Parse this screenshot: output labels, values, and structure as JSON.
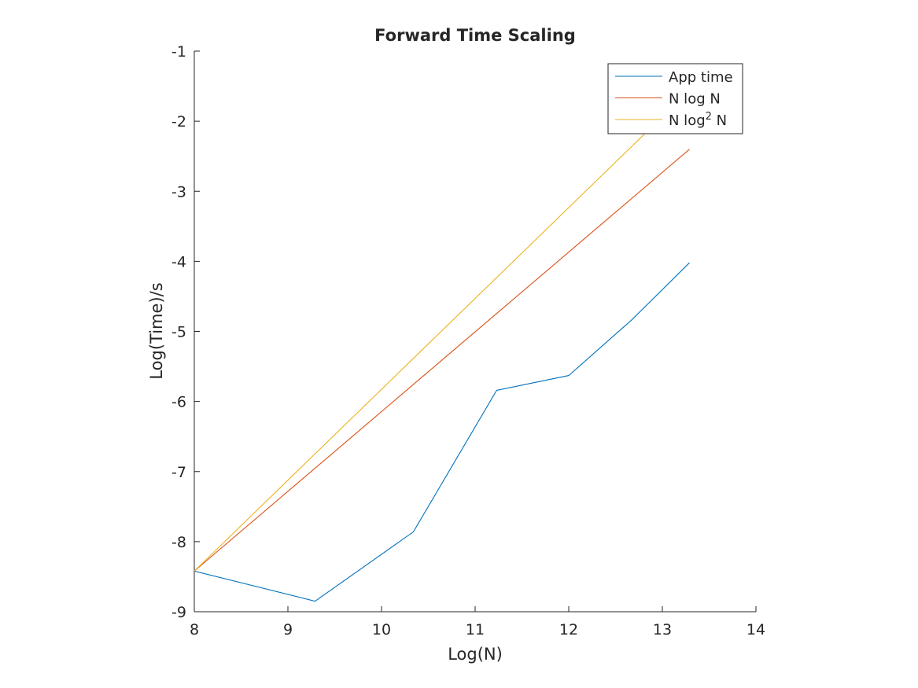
{
  "chart_data": {
    "type": "line",
    "title": "Forward Time Scaling",
    "xlabel": "Log(N)",
    "ylabel": "Log(Time)/s",
    "xlim": [
      8,
      14
    ],
    "ylim": [
      -9,
      -1
    ],
    "xticks": [
      8,
      9,
      10,
      11,
      12,
      13,
      14
    ],
    "yticks": [
      -9,
      -8,
      -7,
      -6,
      -5,
      -4,
      -3,
      -2,
      -1
    ],
    "grid": false,
    "legend_position": "top-right",
    "series": [
      {
        "name": "App time",
        "color": "#0072BD",
        "x": [
          8,
          9.29,
          10.34,
          11.23,
          12.0,
          12.67,
          13.29
        ],
        "y": [
          -8.42,
          -8.85,
          -7.86,
          -5.84,
          -5.63,
          -4.84,
          -4.02
        ]
      },
      {
        "name": "N log N",
        "color": "#D95319",
        "x": [
          8,
          13.29
        ],
        "y": [
          -8.42,
          -2.4
        ]
      },
      {
        "name": "N log² N",
        "legend_html": "N log<sup>2</sup> N",
        "color": "#EDB120",
        "x": [
          8,
          13.29
        ],
        "y": [
          -8.42,
          -1.56
        ]
      }
    ]
  }
}
